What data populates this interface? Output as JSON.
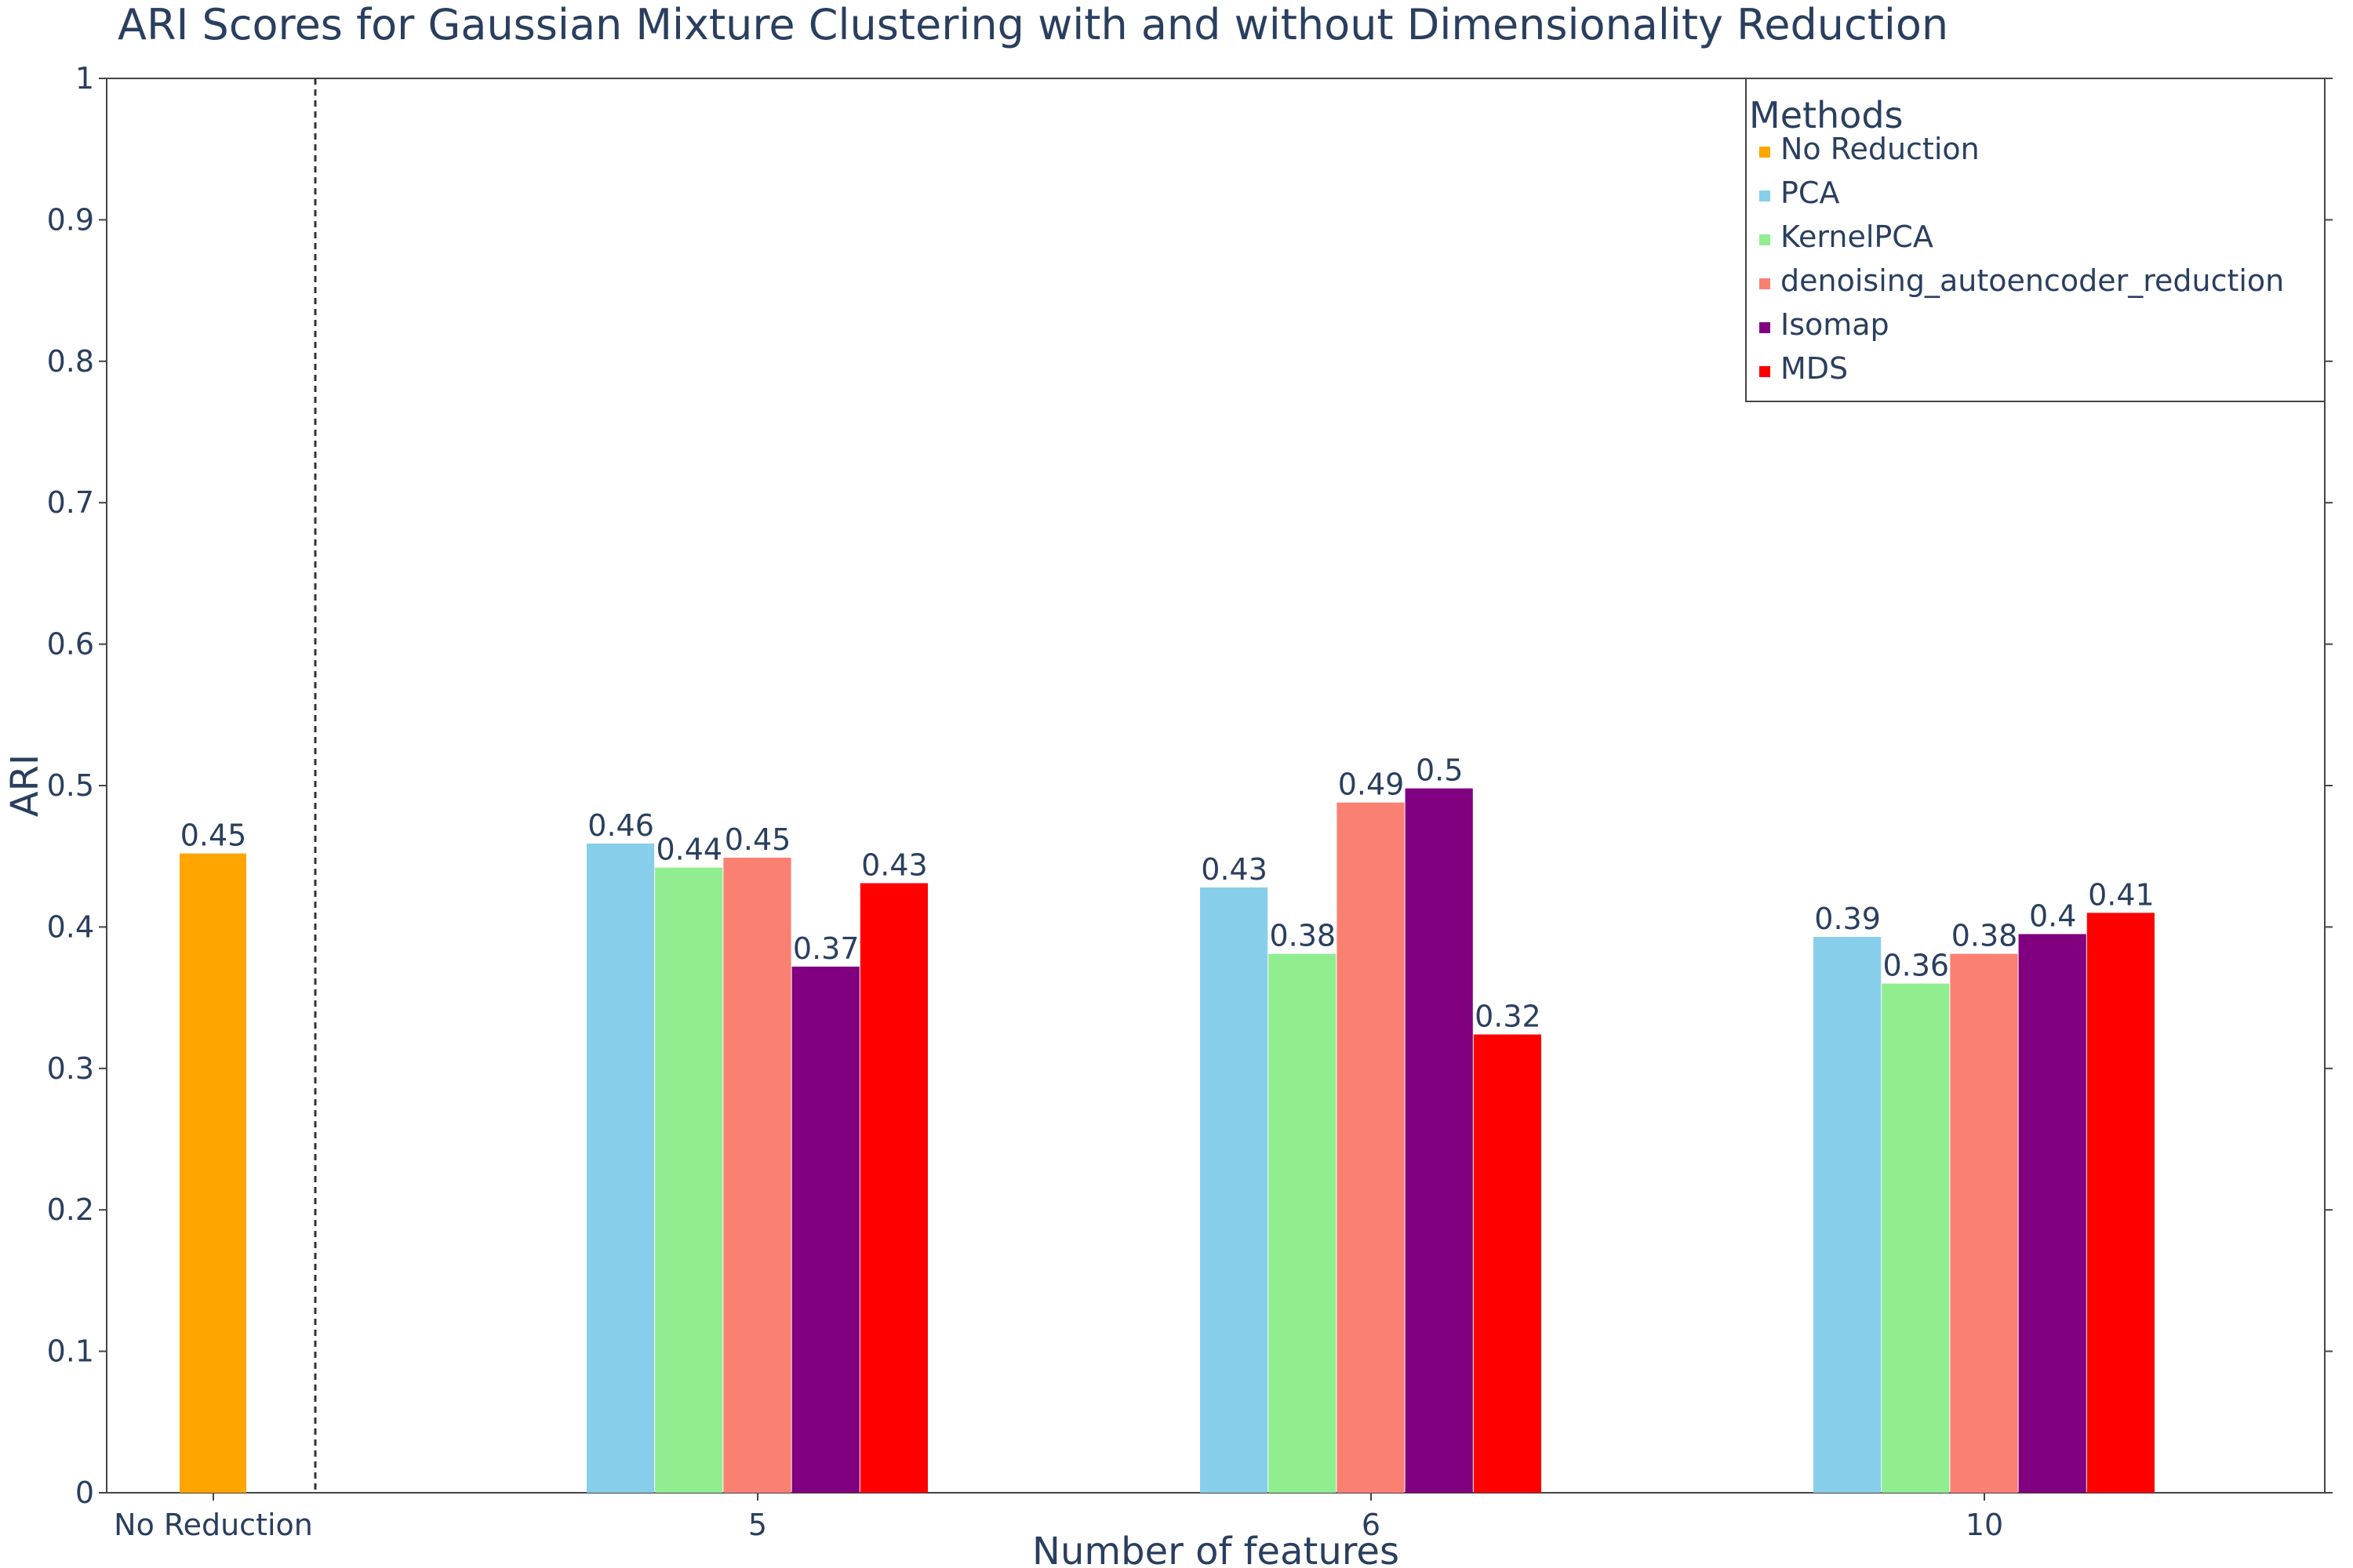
{
  "chart_data": {
    "type": "bar",
    "title": "ARI Scores for Gaussian Mixture Clustering with and without Dimensionality Reduction",
    "xlabel": "Number of features",
    "ylabel": "ARI",
    "ylim": [
      0,
      1
    ],
    "yticks": [
      0,
      0.1,
      0.2,
      0.3,
      0.4,
      0.5,
      0.6,
      0.7,
      0.8,
      0.9,
      1
    ],
    "categories": [
      "No Reduction",
      "5",
      "6",
      "10"
    ],
    "legend": {
      "title": "Methods",
      "position": "top-right"
    },
    "separator": "dashed vertical line between No Reduction and 5",
    "series": [
      {
        "name": "No Reduction",
        "color": "#FFA500",
        "values": [
          0.452,
          null,
          null,
          null
        ],
        "labels": [
          "0.45",
          null,
          null,
          null
        ]
      },
      {
        "name": "PCA",
        "color": "#87CEEB",
        "values": [
          null,
          0.459,
          0.428,
          0.393
        ],
        "labels": [
          null,
          "0.46",
          "0.43",
          "0.39"
        ]
      },
      {
        "name": "KernelPCA",
        "color": "#90EE90",
        "values": [
          null,
          0.442,
          0.381,
          0.36
        ],
        "labels": [
          null,
          "0.44",
          "0.38",
          "0.36"
        ]
      },
      {
        "name": "denoising_autoencoder_reduction",
        "color": "#FA8072",
        "values": [
          null,
          0.449,
          0.488,
          0.381
        ],
        "labels": [
          null,
          "0.45",
          "0.49",
          "0.38"
        ]
      },
      {
        "name": "Isomap",
        "color": "#800080",
        "values": [
          null,
          0.372,
          0.498,
          0.395
        ],
        "labels": [
          null,
          "0.37",
          "0.5",
          "0.4"
        ]
      },
      {
        "name": "MDS",
        "color": "#FF0000",
        "values": [
          null,
          0.431,
          0.324,
          0.41
        ],
        "labels": [
          null,
          "0.43",
          "0.32",
          "0.41"
        ]
      }
    ]
  }
}
